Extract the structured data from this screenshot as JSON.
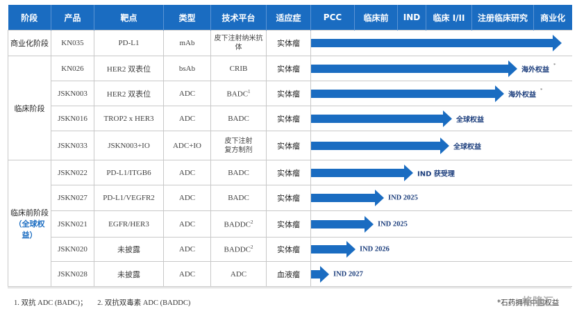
{
  "headers": {
    "stage": "阶段",
    "product": "产品",
    "target": "靶点",
    "type": "类型",
    "platform": "技术平台",
    "indication": "适应症",
    "phases": [
      "PCC",
      "临床前",
      "IND",
      "临床 I/II",
      "注册临床研究",
      "商业化"
    ]
  },
  "stages": {
    "commercial": "商业化阶段",
    "clinical": "临床阶段",
    "preclinical": "临床前阶段",
    "preclinical_sub": "（全球权益）"
  },
  "rows": [
    {
      "product": "KN035",
      "target": "PD-L1",
      "type": "mAb",
      "platform": "皮下注射纳米抗体",
      "indication": "实体瘤",
      "label": "",
      "progress": 1.0
    },
    {
      "product": "KN026",
      "target": "HER2 双表位",
      "type": "bsAb",
      "platform": "CRIB",
      "indication": "实体瘤",
      "label": "海外权益",
      "progress": 0.83
    },
    {
      "product": "JSKN003",
      "target": "HER2 双表位",
      "type": "ADC",
      "platform": "BADC",
      "platform_sup": "1",
      "indication": "实体瘤",
      "label": "海外权益",
      "progress": 0.78
    },
    {
      "product": "JSKN016",
      "target": "TROP2 x HER3",
      "type": "ADC",
      "platform": "BADC",
      "indication": "实体瘤",
      "label": "全球权益",
      "progress": 0.58
    },
    {
      "product": "JSKN033",
      "target": "JSKN003+IO",
      "type": "ADC+IO",
      "platform": "皮下注射 复方制剂",
      "platform_lines": [
        "皮下注射",
        "复方制剂"
      ],
      "indication": "实体瘤",
      "label": "全球权益",
      "progress": 0.57
    },
    {
      "product": "JSKN022",
      "target": "PD-L1/ITGB6",
      "type": "ADC",
      "platform": "BADC",
      "indication": "实体瘤",
      "label": "IND 获受理",
      "progress": 0.43
    },
    {
      "product": "JSKN027",
      "target": "PD-L1/VEGFR2",
      "type": "ADC",
      "platform": "BADC",
      "indication": "实体瘤",
      "label": "IND 2025",
      "progress": 0.32
    },
    {
      "product": "JSKN021",
      "target": "EGFR/HER3",
      "type": "ADC",
      "platform": "BADDC",
      "platform_sup": "2",
      "indication": "实体瘤",
      "label": "IND 2025",
      "progress": 0.28
    },
    {
      "product": "JSKN020",
      "target": "未披露",
      "type": "ADC",
      "platform": "BADDC",
      "platform_sup": "2",
      "indication": "实体瘤",
      "label": "IND 2026",
      "progress": 0.21
    },
    {
      "product": "JSKN028",
      "target": "未披露",
      "type": "ADC",
      "platform": "ADC",
      "indication": "血液瘤",
      "label": "IND 2027",
      "progress": 0.11
    }
  ],
  "footnotes": [
    "1. 双抗 ADC (BADC)；",
    "2. 双抗双毒素 ADC (BADDC)"
  ],
  "rights_note": "*石药拥有中国权益",
  "watermark": "格隆汇",
  "colors": {
    "header_bg": "#1a6cc1",
    "arrow": "#1a6cc1",
    "arrow_label": "#1b3d7c",
    "border": "#c8c8c8"
  }
}
